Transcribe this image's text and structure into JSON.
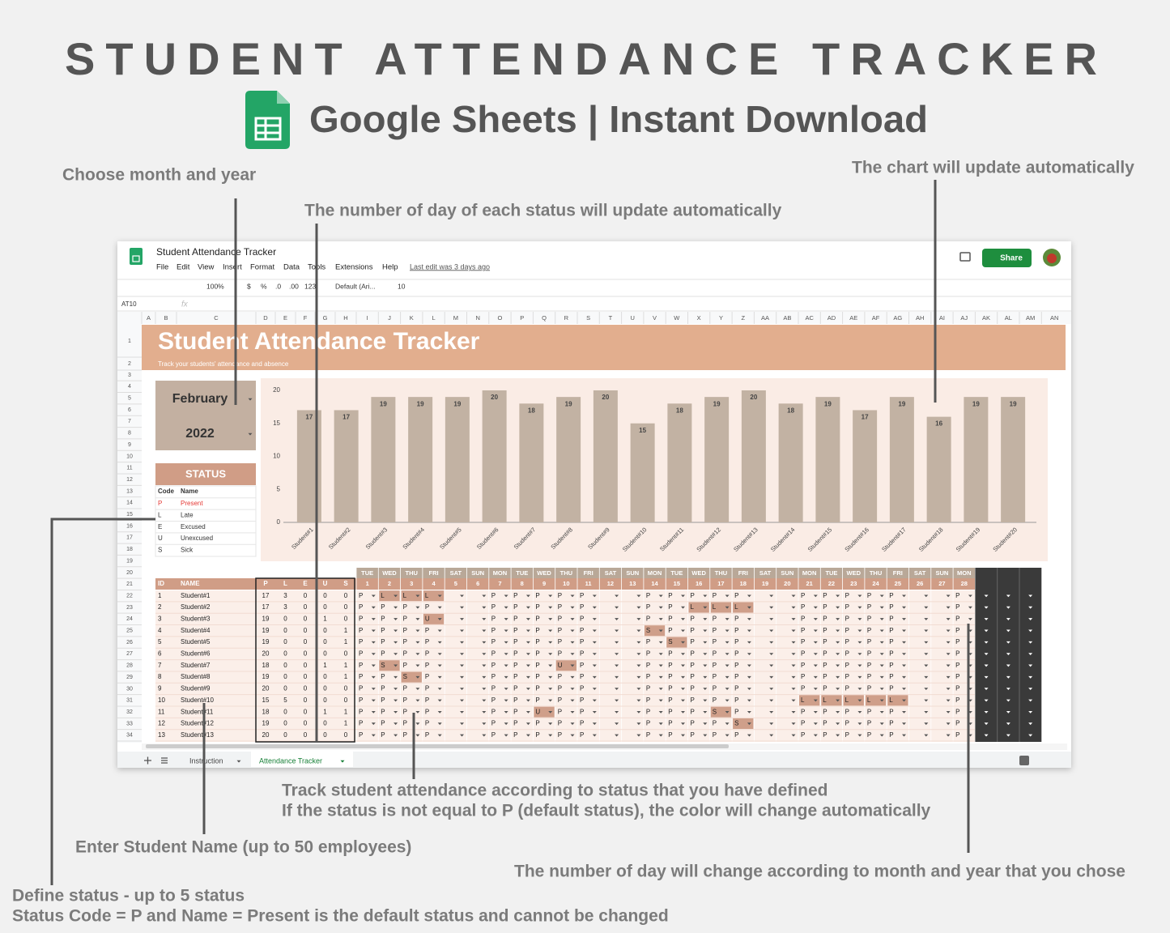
{
  "header": {
    "title": "STUDENT ATTENDANCE TRACKER",
    "subtitle": "Google Sheets | Instant Download"
  },
  "annotations": {
    "month": "Choose month and year",
    "status_count": "The number of day of each status will update automatically",
    "chart": "The chart will update automatically",
    "track": [
      "Track student attendance according to status that you have defined",
      "If the status is not equal to P (default status), the color will change automatically"
    ],
    "names": "Enter Student Name (up to 50 employees)",
    "days": "The number of day will change according to month and year that you chose",
    "status": [
      "Define status - up to 5 status",
      "Status Code = P and Name = Present is the default status and cannot be changed"
    ]
  },
  "app": {
    "doc_title": "Student Attendance Tracker",
    "menu": [
      "File",
      "Edit",
      "View",
      "Insert",
      "Format",
      "Data",
      "Tools",
      "Extensions",
      "Help"
    ],
    "last_edit": "Last edit was 3 days ago",
    "share": "Share",
    "toolbar": [
      "100%",
      "$",
      "%",
      ".0",
      ".00",
      "123",
      "Default (Ari...",
      "10"
    ],
    "cell_ref": "AT10",
    "fx": "fx",
    "columns": [
      "A",
      "B",
      "C",
      "D",
      "E",
      "F",
      "G",
      "H",
      "I",
      "J",
      "K",
      "L",
      "M",
      "N",
      "O",
      "P",
      "Q",
      "R",
      "S",
      "T",
      "U",
      "V",
      "W",
      "X",
      "Y",
      "Z",
      "AA",
      "AB",
      "AC",
      "AD",
      "AE",
      "AF",
      "AG",
      "AH",
      "AI",
      "AJ",
      "AK",
      "AL",
      "AM",
      "AN"
    ],
    "rows": [
      1,
      2,
      3,
      4,
      5,
      6,
      7,
      8,
      9,
      10,
      11,
      12,
      13,
      14,
      15,
      16,
      17,
      18,
      19,
      20,
      21,
      22,
      23,
      24,
      25,
      26,
      27,
      28,
      29,
      30,
      31,
      32,
      33,
      34
    ],
    "tabs": [
      "Instruction",
      "Attendance Tracker"
    ]
  },
  "sheet": {
    "title": "Student Attendance Tracker",
    "subtitle": "Track your students' attendance and absence",
    "month": "February",
    "year": "2022",
    "status_header": "STATUS",
    "status_columns": [
      "Code",
      "Name"
    ],
    "statuses": [
      [
        "P",
        "Present"
      ],
      [
        "L",
        "Late"
      ],
      [
        "E",
        "Excused"
      ],
      [
        "U",
        "Unexcused"
      ],
      [
        "S",
        "Sick"
      ]
    ]
  },
  "chart_data": {
    "type": "bar",
    "categories": [
      "Student#1",
      "Student#2",
      "Student#3",
      "Student#4",
      "Student#5",
      "Student#6",
      "Student#7",
      "Student#8",
      "Student#9",
      "Student#10",
      "Student#11",
      "Student#12",
      "Student#13",
      "Student#14",
      "Student#15",
      "Student#16",
      "Student#17",
      "Student#18",
      "Student#19",
      "Student#20"
    ],
    "values": [
      17,
      17,
      19,
      19,
      19,
      20,
      18,
      19,
      20,
      15,
      18,
      19,
      20,
      18,
      19,
      17,
      19,
      16,
      19,
      19
    ],
    "color": "#c2b2a3",
    "ylim": [
      0,
      20
    ],
    "yticks": [
      0,
      5,
      10,
      15,
      20
    ],
    "grid": false
  },
  "tracker": {
    "columns": [
      "ID",
      "NAME",
      "P",
      "L",
      "E",
      "U",
      "S"
    ],
    "weekdays": [
      "TUE",
      "WED",
      "THU",
      "FRI",
      "SAT",
      "SUN",
      "MON",
      "TUE",
      "WED",
      "THU",
      "FRI",
      "SAT",
      "SUN",
      "MON",
      "TUE",
      "WED",
      "THU",
      "FRI",
      "SAT",
      "SUN",
      "MON",
      "TUE",
      "WED",
      "THU",
      "FRI",
      "SAT",
      "SUN",
      "MON"
    ],
    "days": [
      1,
      2,
      3,
      4,
      5,
      6,
      7,
      8,
      9,
      10,
      11,
      12,
      13,
      14,
      15,
      16,
      17,
      18,
      19,
      20,
      21,
      22,
      23,
      24,
      25,
      26,
      27,
      28
    ],
    "rows": [
      {
        "id": 1,
        "name": "Student#1",
        "counts": [
          17,
          3,
          0,
          0,
          0
        ],
        "marks": [
          "P",
          "L",
          "L",
          "L",
          null,
          null,
          "P",
          "P",
          "P",
          "P",
          "P",
          null,
          null,
          "P",
          "P",
          "P",
          "P",
          "P",
          null,
          null,
          "P",
          "P",
          "P",
          "P",
          "P",
          null,
          null,
          "P"
        ]
      },
      {
        "id": 2,
        "name": "Student#2",
        "counts": [
          17,
          3,
          0,
          0,
          0
        ],
        "marks": [
          "P",
          "P",
          "P",
          "P",
          null,
          null,
          "P",
          "P",
          "P",
          "P",
          "P",
          null,
          null,
          "P",
          "P",
          "L",
          "L",
          "L",
          null,
          null,
          "P",
          "P",
          "P",
          "P",
          "P",
          null,
          null,
          "P"
        ]
      },
      {
        "id": 3,
        "name": "Student#3",
        "counts": [
          19,
          0,
          0,
          1,
          0
        ],
        "marks": [
          "P",
          "P",
          "P",
          "U",
          null,
          null,
          "P",
          "P",
          "P",
          "P",
          "P",
          null,
          null,
          "P",
          "P",
          "P",
          "P",
          "P",
          null,
          null,
          "P",
          "P",
          "P",
          "P",
          "P",
          null,
          null,
          "P"
        ]
      },
      {
        "id": 4,
        "name": "Student#4",
        "counts": [
          19,
          0,
          0,
          0,
          1
        ],
        "marks": [
          "P",
          "P",
          "P",
          "P",
          null,
          null,
          "P",
          "P",
          "P",
          "P",
          "P",
          null,
          null,
          "S",
          "P",
          "P",
          "P",
          "P",
          null,
          null,
          "P",
          "P",
          "P",
          "P",
          "P",
          null,
          null,
          "P"
        ]
      },
      {
        "id": 5,
        "name": "Student#5",
        "counts": [
          19,
          0,
          0,
          0,
          1
        ],
        "marks": [
          "P",
          "P",
          "P",
          "P",
          null,
          null,
          "P",
          "P",
          "P",
          "P",
          "P",
          null,
          null,
          "P",
          "S",
          "P",
          "P",
          "P",
          null,
          null,
          "P",
          "P",
          "P",
          "P",
          "P",
          null,
          null,
          "P"
        ]
      },
      {
        "id": 6,
        "name": "Student#6",
        "counts": [
          20,
          0,
          0,
          0,
          0
        ],
        "marks": [
          "P",
          "P",
          "P",
          "P",
          null,
          null,
          "P",
          "P",
          "P",
          "P",
          "P",
          null,
          null,
          "P",
          "P",
          "P",
          "P",
          "P",
          null,
          null,
          "P",
          "P",
          "P",
          "P",
          "P",
          null,
          null,
          "P"
        ]
      },
      {
        "id": 7,
        "name": "Student#7",
        "counts": [
          18,
          0,
          0,
          1,
          1
        ],
        "marks": [
          "P",
          "S",
          "P",
          "P",
          null,
          null,
          "P",
          "P",
          "P",
          "U",
          "P",
          null,
          null,
          "P",
          "P",
          "P",
          "P",
          "P",
          null,
          null,
          "P",
          "P",
          "P",
          "P",
          "P",
          null,
          null,
          "P"
        ]
      },
      {
        "id": 8,
        "name": "Student#8",
        "counts": [
          19,
          0,
          0,
          0,
          1
        ],
        "marks": [
          "P",
          "P",
          "S",
          "P",
          null,
          null,
          "P",
          "P",
          "P",
          "P",
          "P",
          null,
          null,
          "P",
          "P",
          "P",
          "P",
          "P",
          null,
          null,
          "P",
          "P",
          "P",
          "P",
          "P",
          null,
          null,
          "P"
        ]
      },
      {
        "id": 9,
        "name": "Student#9",
        "counts": [
          20,
          0,
          0,
          0,
          0
        ],
        "marks": [
          "P",
          "P",
          "P",
          "P",
          null,
          null,
          "P",
          "P",
          "P",
          "P",
          "P",
          null,
          null,
          "P",
          "P",
          "P",
          "P",
          "P",
          null,
          null,
          "P",
          "P",
          "P",
          "P",
          "P",
          null,
          null,
          "P"
        ]
      },
      {
        "id": 10,
        "name": "Student#10",
        "counts": [
          15,
          5,
          0,
          0,
          0
        ],
        "marks": [
          "P",
          "P",
          "P",
          "P",
          null,
          null,
          "P",
          "P",
          "P",
          "P",
          "P",
          null,
          null,
          "P",
          "P",
          "P",
          "P",
          "P",
          null,
          null,
          "L",
          "L",
          "L",
          "L",
          "L",
          null,
          null,
          "P"
        ]
      },
      {
        "id": 11,
        "name": "Student#11",
        "counts": [
          18,
          0,
          0,
          1,
          1
        ],
        "marks": [
          "P",
          "P",
          "P",
          "P",
          null,
          null,
          "P",
          "P",
          "U",
          "P",
          "P",
          null,
          null,
          "P",
          "P",
          "P",
          "S",
          "P",
          null,
          null,
          "P",
          "P",
          "P",
          "P",
          "P",
          null,
          null,
          "P"
        ]
      },
      {
        "id": 12,
        "name": "Student#12",
        "counts": [
          19,
          0,
          0,
          0,
          1
        ],
        "marks": [
          "P",
          "P",
          "P",
          "P",
          null,
          null,
          "P",
          "P",
          "P",
          "P",
          "P",
          null,
          null,
          "P",
          "P",
          "P",
          "P",
          "S",
          null,
          null,
          "P",
          "P",
          "P",
          "P",
          "P",
          null,
          null,
          "P"
        ]
      },
      {
        "id": 13,
        "name": "Student#13",
        "counts": [
          20,
          0,
          0,
          0,
          0
        ],
        "marks": [
          "P",
          "P",
          "P",
          "P",
          null,
          null,
          "P",
          "P",
          "P",
          "P",
          "P",
          null,
          null,
          "P",
          "P",
          "P",
          "P",
          "P",
          null,
          null,
          "P",
          "P",
          "P",
          "P",
          "P",
          null,
          null,
          "P"
        ]
      }
    ]
  }
}
